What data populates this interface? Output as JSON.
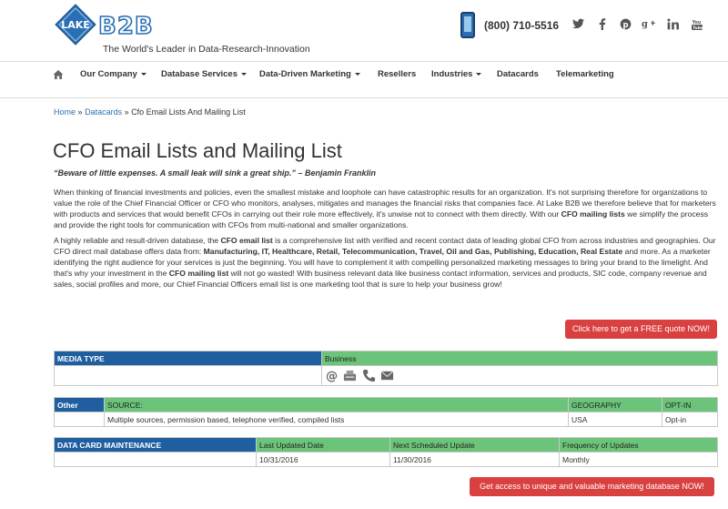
{
  "header": {
    "logo_alt": "LAKE B2B",
    "logo_word1": "LAKE",
    "logo_word2": "B2B",
    "tagline": "The World's Leader in Data-Research-Innovation",
    "phone": "(800) 710-5516",
    "social": [
      {
        "name": "twitter-icon",
        "glyph": "t"
      },
      {
        "name": "facebook-icon",
        "glyph": "f"
      },
      {
        "name": "pinterest-icon",
        "glyph": "p"
      },
      {
        "name": "google-plus-icon",
        "glyph": "g+"
      },
      {
        "name": "linkedin-icon",
        "glyph": "in"
      },
      {
        "name": "youtube-icon",
        "glyph": "yt"
      }
    ]
  },
  "nav": {
    "items": [
      {
        "label": "Our Company",
        "dropdown": true
      },
      {
        "label": "Database Services",
        "dropdown": true
      },
      {
        "label": "Data-Driven Marketing",
        "dropdown": true
      },
      {
        "label": "Resellers",
        "dropdown": false
      },
      {
        "label": "Industries",
        "dropdown": true
      },
      {
        "label": "Datacards",
        "dropdown": false
      },
      {
        "label": "Telemarketing",
        "dropdown": false
      }
    ]
  },
  "breadcrumb": {
    "home": "Home",
    "sep": "»",
    "datacards": "Datacards",
    "current": "Cfo Email Lists And Mailing List"
  },
  "page": {
    "title": "CFO Email Lists and Mailing List",
    "quote": "“Beware of little expenses. A small leak will sink a great ship.” – Benjamin Franklin",
    "para1_a": "When thinking of financial investments and policies, even the smallest mistake and loophole can have catastrophic results for an organization. It's not surprising therefore for organizations to value the role of the Chief Financial Officer or CFO who monitors, analyses, mitigates and manages the financial risks that companies face. At Lake B2B we therefore believe that for marketers with products and services that would benefit CFOs in carrying out their role more effectively, it's unwise not to connect with them directly. With our ",
    "para1_bold": "CFO mailing lists",
    "para1_b": " we simplify the process and provide the right tools for communication with CFOs from multi-national and smaller organizations.",
    "para2_a": "A highly reliable and result-driven database, the ",
    "para2_bold1": "CFO email list",
    "para2_b": " is a comprehensive list with verified and recent contact data of leading global CFO from across industries and geographies. Our CFO direct mail database offers data from: ",
    "para2_bold2": "Manufacturing, IT, Healthcare, Retail, Telecommunication, Travel, Oil and Gas, Publishing, Education, Real Estate",
    "para2_c": " and more. As a marketer identifying the right audience for your services is just the beginning. You will have to complement it with compelling personalized marketing messages to bring your brand to the limelight. And that's why your investment in the ",
    "para2_bold3": "CFO mailing list",
    "para2_d": " will not go wasted! With business relevant data like business contact information, services and products, SIC code, company revenue and sales, social profiles and more, our Chief Financial Officers email list is one marketing tool that is sure to help your business grow!",
    "cta_quote": "Click here to get a FREE quote NOW!",
    "cta_access": "Get access to unique and valuable marketing database NOW!"
  },
  "media_table": {
    "header": "MEDIA TYPE",
    "type": "Business",
    "icons": [
      "email-icon",
      "fax-icon",
      "telephone-icon",
      "mail-envelope-icon"
    ]
  },
  "other_table": {
    "header": "Other",
    "source_label": "SOURCE:",
    "geo_label": "GEOGRAPHY",
    "optin_label": "OPT-IN",
    "source": "Multiple sources, permission based, telephone verified, compiled lists",
    "geo": "USA",
    "optin": "Opt-in"
  },
  "maintenance_table": {
    "header": "DATA CARD MAINTENANCE",
    "last_label": "Last Updated Date",
    "next_label": "Next Scheduled Update",
    "freq_label": "Frequency of Updates",
    "last": "10/31/2016",
    "next": "11/30/2016",
    "freq": "Monthly"
  },
  "colors": {
    "brand_blue": "#2a6fb5",
    "table_blue": "#1f5fa0",
    "table_green": "#6cc47a",
    "cta_red": "#d94040"
  }
}
